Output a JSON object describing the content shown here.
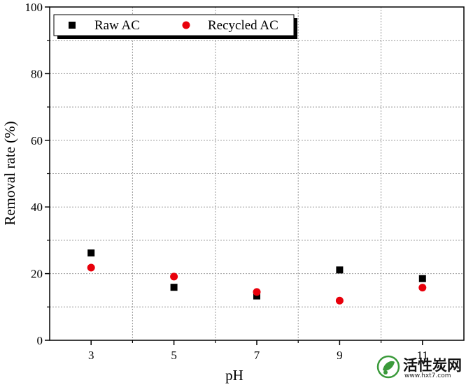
{
  "chart_data": {
    "type": "scatter",
    "xlabel": "pH",
    "ylabel": "Removal rate (%)",
    "xlim": [
      2,
      12
    ],
    "ylim": [
      0,
      100
    ],
    "x_ticks": [
      "3",
      "5",
      "7",
      "9",
      "11"
    ],
    "y_ticks": [
      "0",
      "20",
      "40",
      "60",
      "80",
      "100"
    ],
    "grid": true,
    "legend_position": "top-left",
    "series": [
      {
        "name": "Raw AC",
        "marker": "square",
        "color": "#000000",
        "x": [
          3,
          5,
          7,
          9,
          11
        ],
        "y": [
          26.2,
          15.9,
          13.3,
          21.1,
          18.5
        ]
      },
      {
        "name": "Recycled AC",
        "marker": "circle",
        "color": "#e8000b",
        "x": [
          3,
          5,
          7,
          9,
          11
        ],
        "y": [
          21.8,
          19.1,
          14.5,
          11.9,
          15.8
        ]
      }
    ]
  },
  "watermark": {
    "text": "活性炭网",
    "url": "www.hxt7.com"
  }
}
